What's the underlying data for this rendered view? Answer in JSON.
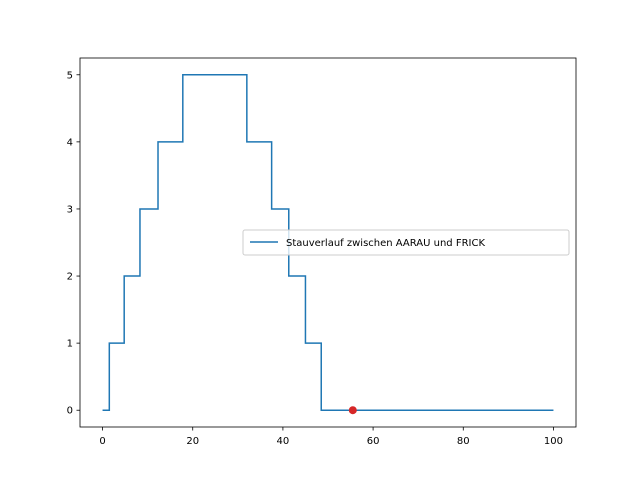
{
  "chart_data": {
    "type": "line",
    "title": "",
    "xlabel": "",
    "ylabel": "",
    "xlim": [
      -5,
      105
    ],
    "ylim": [
      -0.25,
      5.25
    ],
    "xticks": [
      0,
      20,
      40,
      60,
      80,
      100
    ],
    "yticks": [
      0,
      1,
      2,
      3,
      4,
      5
    ],
    "xtick_labels": [
      "0",
      "20",
      "40",
      "60",
      "80",
      "100"
    ],
    "ytick_labels": [
      "0",
      "1",
      "2",
      "3",
      "4",
      "5"
    ],
    "grid": false,
    "legend_position": "center-right",
    "series": [
      {
        "name": "Stauverlauf zwischen AARAU und FRICK",
        "color": "#1f77b4",
        "step": true,
        "x": [
          0,
          1.5,
          1.5,
          4.8,
          4.8,
          8.3,
          8.3,
          12.3,
          12.3,
          17.8,
          17.8,
          32.0,
          32.0,
          37.5,
          37.5,
          41.3,
          41.3,
          45.0,
          45.0,
          48.5,
          48.5,
          100
        ],
        "y": [
          0,
          0,
          1,
          1,
          2,
          2,
          3,
          3,
          4,
          4,
          5,
          5,
          4,
          4,
          3,
          3,
          2,
          2,
          1,
          1,
          0,
          0
        ]
      }
    ],
    "markers": [
      {
        "x": 55.5,
        "y": 0,
        "color": "#d62728"
      }
    ]
  }
}
